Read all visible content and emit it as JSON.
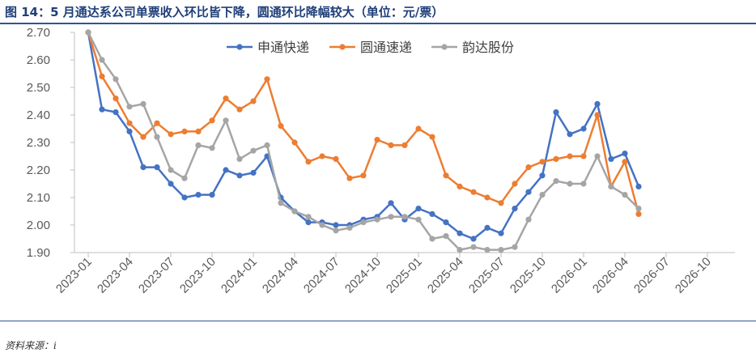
{
  "header": {
    "title": "图 14：5 月通达系公司单票收入环比皆下降，圆通环比降幅较大（单位：元/票）"
  },
  "footer": {
    "source": "资料来源：i"
  },
  "chart_data": {
    "type": "line",
    "yticks": [
      "1.90",
      "2.00",
      "2.10",
      "2.20",
      "2.30",
      "2.40",
      "2.50",
      "2.60",
      "2.70"
    ],
    "ylim": [
      1.9,
      2.7
    ],
    "xticks": [
      "2023-01",
      "2023-04",
      "2023-07",
      "2023-10",
      "2024-01",
      "2024-04",
      "2024-07",
      "2024-10",
      "2025-01",
      "2025-04",
      "2025-07",
      "2025-10",
      "2026-01",
      "2026-04",
      "2026-07",
      "2026-10"
    ],
    "xlim": [
      "2022-12",
      "2026-12"
    ],
    "legend_position": "top",
    "grid": false,
    "series": [
      {
        "name": "申通快递",
        "color": "#4472C4",
        "points": [
          [
            "2023-01",
            2.7
          ],
          [
            "2023-02",
            2.42
          ],
          [
            "2023-03",
            2.41
          ],
          [
            "2023-04",
            2.34
          ],
          [
            "2023-05",
            2.21
          ],
          [
            "2023-06",
            2.21
          ],
          [
            "2023-07",
            2.15
          ],
          [
            "2023-08",
            2.1
          ],
          [
            "2023-09",
            2.11
          ],
          [
            "2023-10",
            2.11
          ],
          [
            "2023-11",
            2.2
          ],
          [
            "2023-12",
            2.18
          ],
          [
            "2024-01",
            2.19
          ],
          [
            "2024-02",
            2.25
          ],
          [
            "2024-03",
            2.1
          ],
          [
            "2024-04",
            2.05
          ],
          [
            "2024-05",
            2.01
          ],
          [
            "2024-06",
            2.01
          ],
          [
            "2024-07",
            2.0
          ],
          [
            "2024-08",
            2.0
          ],
          [
            "2024-09",
            2.02
          ],
          [
            "2024-10",
            2.03
          ],
          [
            "2024-11",
            2.08
          ],
          [
            "2024-12",
            2.02
          ],
          [
            "2025-01",
            2.06
          ],
          [
            "2025-02",
            2.04
          ],
          [
            "2025-03",
            2.01
          ],
          [
            "2025-04",
            1.97
          ],
          [
            "2025-05",
            1.95
          ],
          [
            "2025-06",
            1.99
          ],
          [
            "2025-07",
            1.97
          ],
          [
            "2025-08",
            2.06
          ],
          [
            "2025-09",
            2.12
          ],
          [
            "2025-10",
            2.18
          ],
          [
            "2025-11",
            2.41
          ],
          [
            "2025-12",
            2.33
          ],
          [
            "2026-01",
            2.35
          ],
          [
            "2026-02",
            2.44
          ],
          [
            "2026-03",
            2.24
          ],
          [
            "2026-04",
            2.26
          ],
          [
            "2026-05",
            2.14
          ]
        ]
      },
      {
        "name": "圆通速递",
        "color": "#ED7D31",
        "points": [
          [
            "2023-01",
            2.7
          ],
          [
            "2023-02",
            2.54
          ],
          [
            "2023-03",
            2.46
          ],
          [
            "2023-04",
            2.37
          ],
          [
            "2023-05",
            2.32
          ],
          [
            "2023-06",
            2.37
          ],
          [
            "2023-07",
            2.33
          ],
          [
            "2023-08",
            2.34
          ],
          [
            "2023-09",
            2.34
          ],
          [
            "2023-10",
            2.38
          ],
          [
            "2023-11",
            2.46
          ],
          [
            "2023-12",
            2.42
          ],
          [
            "2024-01",
            2.45
          ],
          [
            "2024-02",
            2.53
          ],
          [
            "2024-03",
            2.36
          ],
          [
            "2024-04",
            2.3
          ],
          [
            "2024-05",
            2.23
          ],
          [
            "2024-06",
            2.25
          ],
          [
            "2024-07",
            2.24
          ],
          [
            "2024-08",
            2.17
          ],
          [
            "2024-09",
            2.18
          ],
          [
            "2024-10",
            2.31
          ],
          [
            "2024-11",
            2.29
          ],
          [
            "2024-12",
            2.29
          ],
          [
            "2025-01",
            2.35
          ],
          [
            "2025-02",
            2.32
          ],
          [
            "2025-03",
            2.18
          ],
          [
            "2025-04",
            2.14
          ],
          [
            "2025-05",
            2.12
          ],
          [
            "2025-06",
            2.1
          ],
          [
            "2025-07",
            2.08
          ],
          [
            "2025-08",
            2.15
          ],
          [
            "2025-09",
            2.21
          ],
          [
            "2025-10",
            2.23
          ],
          [
            "2025-11",
            2.24
          ],
          [
            "2025-12",
            2.25
          ],
          [
            "2026-01",
            2.25
          ],
          [
            "2026-02",
            2.4
          ],
          [
            "2026-03",
            2.14
          ],
          [
            "2026-04",
            2.23
          ],
          [
            "2026-05",
            2.04
          ]
        ]
      },
      {
        "name": "韵达股份",
        "color": "#A5A5A5",
        "points": [
          [
            "2023-01",
            2.7
          ],
          [
            "2023-02",
            2.6
          ],
          [
            "2023-03",
            2.53
          ],
          [
            "2023-04",
            2.43
          ],
          [
            "2023-05",
            2.44
          ],
          [
            "2023-06",
            2.32
          ],
          [
            "2023-07",
            2.2
          ],
          [
            "2023-08",
            2.17
          ],
          [
            "2023-09",
            2.29
          ],
          [
            "2023-10",
            2.28
          ],
          [
            "2023-11",
            2.38
          ],
          [
            "2023-12",
            2.24
          ],
          [
            "2024-01",
            2.27
          ],
          [
            "2024-02",
            2.29
          ],
          [
            "2024-03",
            2.08
          ],
          [
            "2024-04",
            2.05
          ],
          [
            "2024-05",
            2.03
          ],
          [
            "2024-06",
            2.0
          ],
          [
            "2024-07",
            1.98
          ],
          [
            "2024-08",
            1.99
          ],
          [
            "2024-09",
            2.01
          ],
          [
            "2024-10",
            2.02
          ],
          [
            "2024-11",
            2.03
          ],
          [
            "2024-12",
            2.03
          ],
          [
            "2025-01",
            2.02
          ],
          [
            "2025-02",
            1.95
          ],
          [
            "2025-03",
            1.96
          ],
          [
            "2025-04",
            1.91
          ],
          [
            "2025-05",
            1.92
          ],
          [
            "2025-06",
            1.91
          ],
          [
            "2025-07",
            1.91
          ],
          [
            "2025-08",
            1.92
          ],
          [
            "2025-09",
            2.02
          ],
          [
            "2025-10",
            2.11
          ],
          [
            "2025-11",
            2.16
          ],
          [
            "2025-12",
            2.15
          ],
          [
            "2026-01",
            2.15
          ],
          [
            "2026-02",
            2.25
          ],
          [
            "2026-03",
            2.14
          ],
          [
            "2026-04",
            2.11
          ],
          [
            "2026-05",
            2.06
          ]
        ]
      }
    ]
  }
}
